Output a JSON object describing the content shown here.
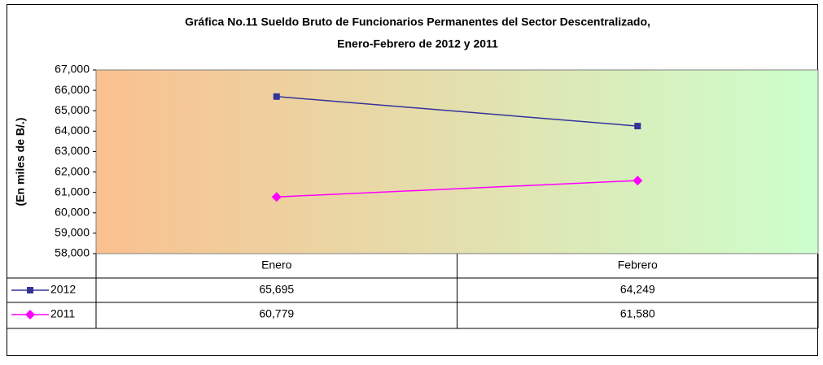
{
  "chart_data": {
    "type": "line",
    "title": [
      "Gráfica No.11 Sueldo Bruto de Funcionarios Permanentes del Sector Descentralizado,",
      "Enero-Febrero de 2012 y 2011"
    ],
    "y_label": "(En miles de B/.)",
    "categories": [
      "Enero",
      "Febrero"
    ],
    "series": [
      {
        "name": "2012",
        "color": "#333399",
        "marker": "square",
        "values": [
          65695,
          64249
        ],
        "value_labels": [
          "65,695",
          "64,249"
        ]
      },
      {
        "name": "2011",
        "color": "#ff00ff",
        "marker": "diamond",
        "values": [
          60779,
          61580
        ],
        "value_labels": [
          "60,779",
          "61,580"
        ]
      }
    ],
    "ylim": [
      58000,
      67000
    ],
    "yticks": [
      {
        "value": 58000,
        "label": "58,000"
      },
      {
        "value": 59000,
        "label": "59,000"
      },
      {
        "value": 60000,
        "label": "60,000"
      },
      {
        "value": 61000,
        "label": "61,000"
      },
      {
        "value": 62000,
        "label": "62,000"
      },
      {
        "value": 63000,
        "label": "63,000"
      },
      {
        "value": 64000,
        "label": "64,000"
      },
      {
        "value": 65000,
        "label": "65,000"
      },
      {
        "value": 66000,
        "label": "66,000"
      },
      {
        "value": 67000,
        "label": "67,000"
      }
    ],
    "grid": false
  }
}
